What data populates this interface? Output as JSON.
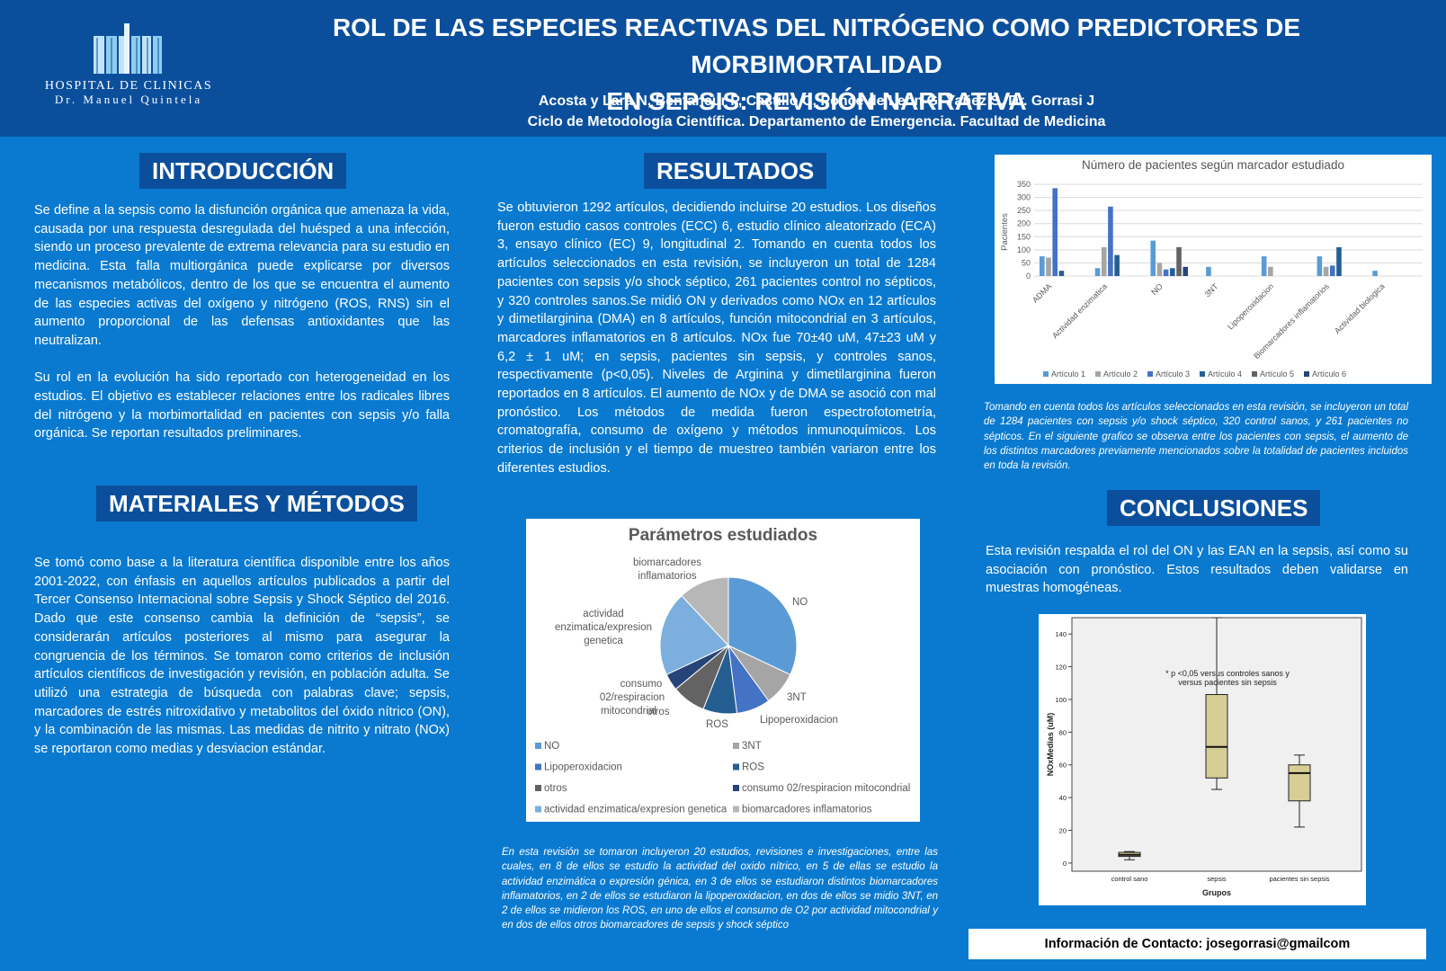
{
  "header": {
    "logo_line1": "HOSPITAL DE CLINICAS",
    "logo_line2": "Dr. Manuel Quintela",
    "title_line1": "ROL DE LAS ESPECIES REACTIVAS DEL NITRÓGENO COMO PREDICTORES DE MORBIMORTALIDAD",
    "title_line2": "EN SEPSIS: REVISIÓN NARRATIVA",
    "authors": "Acosta y Lara N, Bentancur P, Castillo C, Ponce de Leon G, Yañez S, Dr. Gorrasi J",
    "affiliation": "Ciclo de Metodología Científica. Departamento de Emergencia. Facultad de Medicina"
  },
  "introduccion": {
    "heading": "INTRODUCCIÓN",
    "p1": "Se define a la sepsis como la disfunción orgánica que amenaza la vida, causada por una respuesta desregulada del huésped a una infección, siendo un proceso prevalente de extrema relevancia para su estudio en medicina. Esta falla multiorgánica puede explicarse por diversos mecanismos metabólicos, dentro de los que se encuentra el aumento de las especies activas del oxígeno y nitrógeno (ROS, RNS) sin el aumento proporcional de las defensas antioxidantes que las neutralizan.",
    "p2": "Su rol en la evolución ha sido reportado con heterogeneidad en los estudios. El objetivo es establecer relaciones entre los radicales libres del nitrógeno y la morbimortalidad en pacientes con sepsis y/o falla orgánica. Se reportan resultados preliminares."
  },
  "materiales": {
    "heading": "MATERIALES Y MÉTODOS",
    "p1": "Se tomó como base a la literatura científica disponible entre los años 2001-2022, con énfasis en aquellos artículos publicados a partir del Tercer Consenso Internacional sobre Sepsis y Shock Séptico del 2016. Dado que este consenso cambia la definición de “sepsis”, se considerarán artículos posteriores al mismo para asegurar la congruencia de los términos. Se tomaron como criterios de inclusión artículos científicos de investigación y revisión, en población adulta. Se utilizó una estrategia de búsqueda con palabras clave; sepsis, marcadores de estrés nitroxidativo y metabolitos del óxido nítrico (ON), y la combinación de las mismas. Las medidas de nitrito y nitrato (NOx) se reportaron como medias y desviacion estándar."
  },
  "resultados": {
    "heading": "RESULTADOS",
    "p1": "Se obtuvieron 1292 artículos, decidiendo incluirse 20 estudios. Los diseños fueron estudio casos controles (ECC) 6, estudio clínico aleatorizado (ECA) 3, ensayo clínico (EC) 9, longitudinal 2. Tomando en cuenta todos los artículos seleccionados en esta revisión, se incluyeron un total de 1284 pacientes con sepsis y/o shock séptico, 261 pacientes control no sépticos, y 320 controles sanos.Se midió ON y derivados como NOx en 12 artículos y dimetilarginina (DMA) en 8 artículos, función mitocondrial en 3 artículos, marcadores inflamatorios en 8 artículos. NOx fue 70±40 uM, 47±23 uM y 6,2 ± 1 uM; en sepsis, pacientes sin sepsis, y controles sanos, respectivamente (p<0,05). Niveles de Arginina y dimetilarginina fueron reportados en 8 artículos. El aumento de NOx y de DMA se asoció con mal pronóstico. Los métodos de medida fueron espectrofotometría, cromatografía, consumo de oxígeno y métodos inmunoquímicos. Los criterios de inclusión y el tiempo de muestreo también variaron entre los diferentes estudios.",
    "pie_caption": "En esta revisión se tomaron incluyeron 20 estudios, revisiones e investigaciones, entre las cuales, en 8 de ellos se estudio la actividad del oxido nítrico, en 5 de ellas se estudio la actividad enzimática o expresión génica, en 3 de ellos se estudiaron distintos biomarcadores inflamatorios, en 2 de ellos se estudiaron la lipoperoxidacion, en dos de ellos se midio 3NT, en 2 de ellos se midieron los ROS, en uno de ellos el consumo de O2 por actividad mitocondrial y en dos de ellos otros biomarcadores de sepsis y shock séptico"
  },
  "bar_caption": "Tomando en cuenta todos los artículos seleccionados en esta revisión, se incluyeron un total de 1284 pacientes con sepsis y/o shock séptico, 320 control sanos, y 261 pacientes no sépticos. En el siguiente grafico se observa entre los pacientes con sepsis, el aumento de los distintos marcadores previamente mencionados sobre la totalidad de pacientes incluidos en toda la revisión.",
  "conclusiones": {
    "heading": "CONCLUSIONES",
    "p1": "Esta revisión respalda el rol del ON y las EAN en la sepsis, así como su asociación con pronóstico. Estos resultados deben validarse en muestras homogéneas."
  },
  "contact": "Información de Contacto: josegorrasi@gmailcom",
  "colors": {
    "background": "#0a7ad0",
    "header": "#0b4f9c"
  },
  "chart_data": [
    {
      "type": "bar",
      "title": "Número de pacientes según marcador estudiado",
      "ylabel": "Pacientes",
      "xlabel": "",
      "ylim": [
        0,
        350
      ],
      "yticks": [
        0,
        50,
        100,
        150,
        200,
        250,
        300,
        350
      ],
      "grid": true,
      "legend": "bottom",
      "categories": [
        "ADMA",
        "Actividad enzimatica",
        "NO",
        "3NT",
        "Lipoperoxidacion",
        "Biomarcadores inflamatorios",
        "Actividad biologica"
      ],
      "series": [
        {
          "name": "Artículo 1",
          "color": "#5b9bd5",
          "values": [
            75,
            30,
            135,
            35,
            75,
            75,
            20
          ]
        },
        {
          "name": "Artículo 2",
          "color": "#a5a5a5",
          "values": [
            70,
            110,
            50,
            null,
            35,
            35,
            null
          ]
        },
        {
          "name": "Artículo 3",
          "color": "#4472c4",
          "values": [
            335,
            265,
            25,
            null,
            null,
            40,
            null
          ]
        },
        {
          "name": "Artículo 4",
          "color": "#255e91",
          "values": [
            20,
            80,
            30,
            null,
            null,
            110,
            null
          ]
        },
        {
          "name": "Artículo 5",
          "color": "#636363",
          "values": [
            null,
            null,
            110,
            null,
            null,
            null,
            null
          ]
        },
        {
          "name": "Artículo 6",
          "color": "#264478",
          "values": [
            null,
            null,
            35,
            null,
            null,
            null,
            null
          ]
        }
      ]
    },
    {
      "type": "pie",
      "title": "Parámetros estudiados",
      "legend": "bottom",
      "slices": [
        {
          "label": "NO",
          "value": 8,
          "color": "#5b9bd5"
        },
        {
          "label": "3NT",
          "value": 2,
          "color": "#a5a5a5"
        },
        {
          "label": "Lipoperoxidacion",
          "value": 2,
          "color": "#4472c4"
        },
        {
          "label": "ROS",
          "value": 2,
          "color": "#255e91"
        },
        {
          "label": "otros",
          "value": 2,
          "color": "#636363"
        },
        {
          "label": "consumo 02/respiracion mitocondrial",
          "value": 1,
          "color": "#264478"
        },
        {
          "label": "actividad enzimatica/expresion genetica",
          "value": 5,
          "color": "#7cafdd"
        },
        {
          "label": "biomarcadores inflamatorios",
          "value": 3,
          "color": "#b7b7b7"
        }
      ],
      "slice_labels": {
        "NO": "NO",
        "3NT": "3NT",
        "Lipoperoxidacion": "Lipoperoxidacion",
        "ROS": "ROS",
        "otros": "otros",
        "consumo_l1": "consumo",
        "consumo_l2": "02/respiracion",
        "consumo_l3": "mitocondrial",
        "act_l1": "actividad",
        "act_l2": "enzimatica/expresion",
        "act_l3": "genetica",
        "bio_l1": "biomarcadores",
        "bio_l2": "inflamatorios"
      }
    },
    {
      "type": "boxplot",
      "xlabel": "Grupos",
      "ylabel": "NOxMedias (uM)",
      "ylim": [
        -5,
        150
      ],
      "yticks": [
        0,
        20,
        40,
        60,
        80,
        100,
        120,
        140
      ],
      "annotation_l1": "* p <0,05 versus controles sanos y",
      "annotation_l2": "versus pacientes sin sepsis",
      "groups": [
        {
          "name": "control sano",
          "min": 2,
          "q1": 4,
          "median": 5,
          "q3": 6.5,
          "max": 7
        },
        {
          "name": "sepsis",
          "min": 45,
          "q1": 52,
          "median": 71,
          "q3": 103,
          "max": 150
        },
        {
          "name": "pacientes sin sepsis",
          "min": 22,
          "q1": 38,
          "median": 55,
          "q3": 60,
          "max": 66
        }
      ]
    }
  ]
}
